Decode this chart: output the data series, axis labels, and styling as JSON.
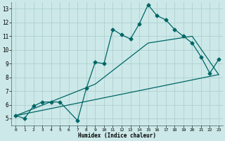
{
  "title": "",
  "xlabel": "Humidex (Indice chaleur)",
  "xlim": [
    -0.5,
    23.5
  ],
  "ylim": [
    4.5,
    13.5
  ],
  "xticks": [
    0,
    1,
    2,
    3,
    4,
    5,
    6,
    7,
    8,
    9,
    10,
    11,
    12,
    13,
    14,
    15,
    16,
    17,
    18,
    19,
    20,
    21,
    22,
    23
  ],
  "yticks": [
    5,
    6,
    7,
    8,
    9,
    10,
    11,
    12,
    13
  ],
  "background_color": "#cce8e8",
  "grid_color": "#aacccc",
  "line_color": "#006666",
  "line1_x": [
    0,
    1,
    2,
    3,
    4,
    5,
    7,
    8,
    9,
    10,
    11,
    12,
    13,
    14,
    15,
    16,
    17,
    18,
    19,
    20,
    21,
    22,
    23
  ],
  "line1_y": [
    5.2,
    5.0,
    5.9,
    6.2,
    6.2,
    6.2,
    4.85,
    7.2,
    9.1,
    9.0,
    11.5,
    11.1,
    10.8,
    11.9,
    13.3,
    12.5,
    12.2,
    11.5,
    11.0,
    10.5,
    9.5,
    8.3,
    9.3
  ],
  "line2_x": [
    0,
    23
  ],
  "line2_y": [
    5.2,
    8.2
  ],
  "line3_x": [
    0,
    9,
    15,
    20,
    23
  ],
  "line3_y": [
    5.2,
    7.5,
    10.5,
    11.0,
    8.2
  ],
  "marker": "D",
  "markersize": 2.5,
  "linewidth": 0.9
}
